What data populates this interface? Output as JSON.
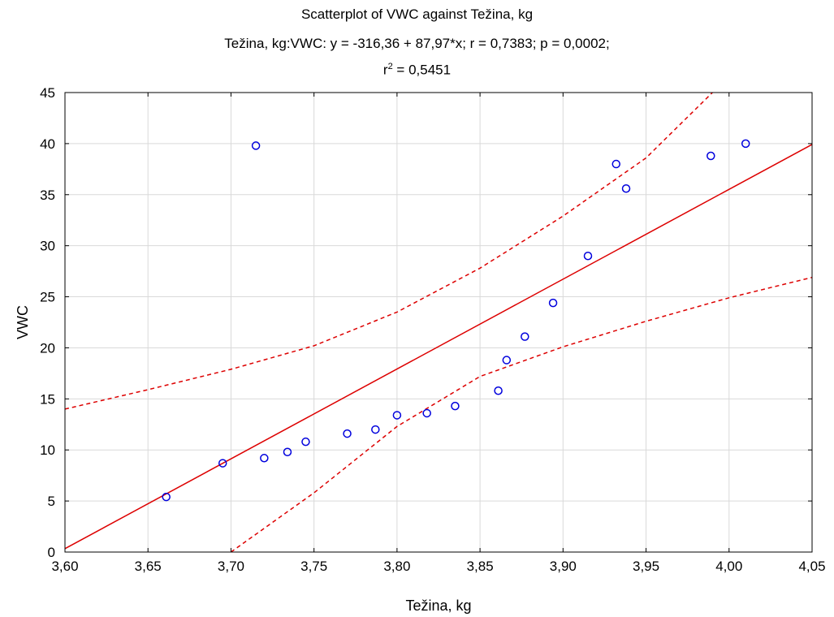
{
  "chart_data": {
    "type": "scatter",
    "title": "Scatterplot of VWC against Težina, kg",
    "subtitle_main": "Težina, kg:VWC:   y = -316,36 + 87,97*x;  r = 0,7383; p = 0,0002;",
    "subtitle_r2_prefix": "r",
    "subtitle_r2_exp": "2",
    "subtitle_r2_value": " = 0,5451",
    "xlabel": "Težina, kg",
    "ylabel": "VWC",
    "xlim": [
      3.6,
      4.05
    ],
    "ylim": [
      0,
      45
    ],
    "x_ticks": [
      3.6,
      3.65,
      3.7,
      3.75,
      3.8,
      3.85,
      3.9,
      3.95,
      4.0,
      4.05
    ],
    "x_tick_labels": [
      "3,60",
      "3,65",
      "3,70",
      "3,75",
      "3,80",
      "3,85",
      "3,90",
      "3,95",
      "4,00",
      "4,05"
    ],
    "y_ticks": [
      0,
      5,
      10,
      15,
      20,
      25,
      30,
      35,
      40,
      45
    ],
    "y_tick_labels": [
      "0",
      "5",
      "10",
      "15",
      "20",
      "25",
      "30",
      "35",
      "40",
      "45"
    ],
    "grid": true,
    "points": [
      {
        "x": 3.661,
        "y": 5.4
      },
      {
        "x": 3.695,
        "y": 8.7
      },
      {
        "x": 3.715,
        "y": 39.8
      },
      {
        "x": 3.72,
        "y": 9.2
      },
      {
        "x": 3.734,
        "y": 9.8
      },
      {
        "x": 3.745,
        "y": 10.8
      },
      {
        "x": 3.77,
        "y": 11.6
      },
      {
        "x": 3.787,
        "y": 12.0
      },
      {
        "x": 3.8,
        "y": 13.4
      },
      {
        "x": 3.818,
        "y": 13.6
      },
      {
        "x": 3.835,
        "y": 14.3
      },
      {
        "x": 3.861,
        "y": 15.8
      },
      {
        "x": 3.866,
        "y": 18.8
      },
      {
        "x": 3.877,
        "y": 21.1
      },
      {
        "x": 3.894,
        "y": 24.4
      },
      {
        "x": 3.915,
        "y": 29.0
      },
      {
        "x": 3.932,
        "y": 38.0
      },
      {
        "x": 3.938,
        "y": 35.6
      },
      {
        "x": 3.989,
        "y": 38.8
      },
      {
        "x": 4.01,
        "y": 40.0
      }
    ],
    "regression": {
      "intercept": -316.36,
      "slope": 87.97
    },
    "confidence_upper": [
      {
        "x": 3.6,
        "y": 14.0
      },
      {
        "x": 3.65,
        "y": 15.9
      },
      {
        "x": 3.7,
        "y": 17.9
      },
      {
        "x": 3.75,
        "y": 20.2
      },
      {
        "x": 3.8,
        "y": 23.5
      },
      {
        "x": 3.85,
        "y": 27.8
      },
      {
        "x": 3.9,
        "y": 32.9
      },
      {
        "x": 3.95,
        "y": 38.6
      },
      {
        "x": 3.99,
        "y": 45.0
      }
    ],
    "confidence_lower": [
      {
        "x": 3.7,
        "y": 0.0
      },
      {
        "x": 3.75,
        "y": 5.8
      },
      {
        "x": 3.8,
        "y": 12.3
      },
      {
        "x": 3.85,
        "y": 17.2
      },
      {
        "x": 3.9,
        "y": 20.1
      },
      {
        "x": 3.95,
        "y": 22.6
      },
      {
        "x": 4.0,
        "y": 24.9
      },
      {
        "x": 4.05,
        "y": 26.9
      }
    ],
    "colors": {
      "points": "#0000dd",
      "fit_line": "#dd0000",
      "grid": "#d9d9d9",
      "frame": "#000000"
    }
  }
}
